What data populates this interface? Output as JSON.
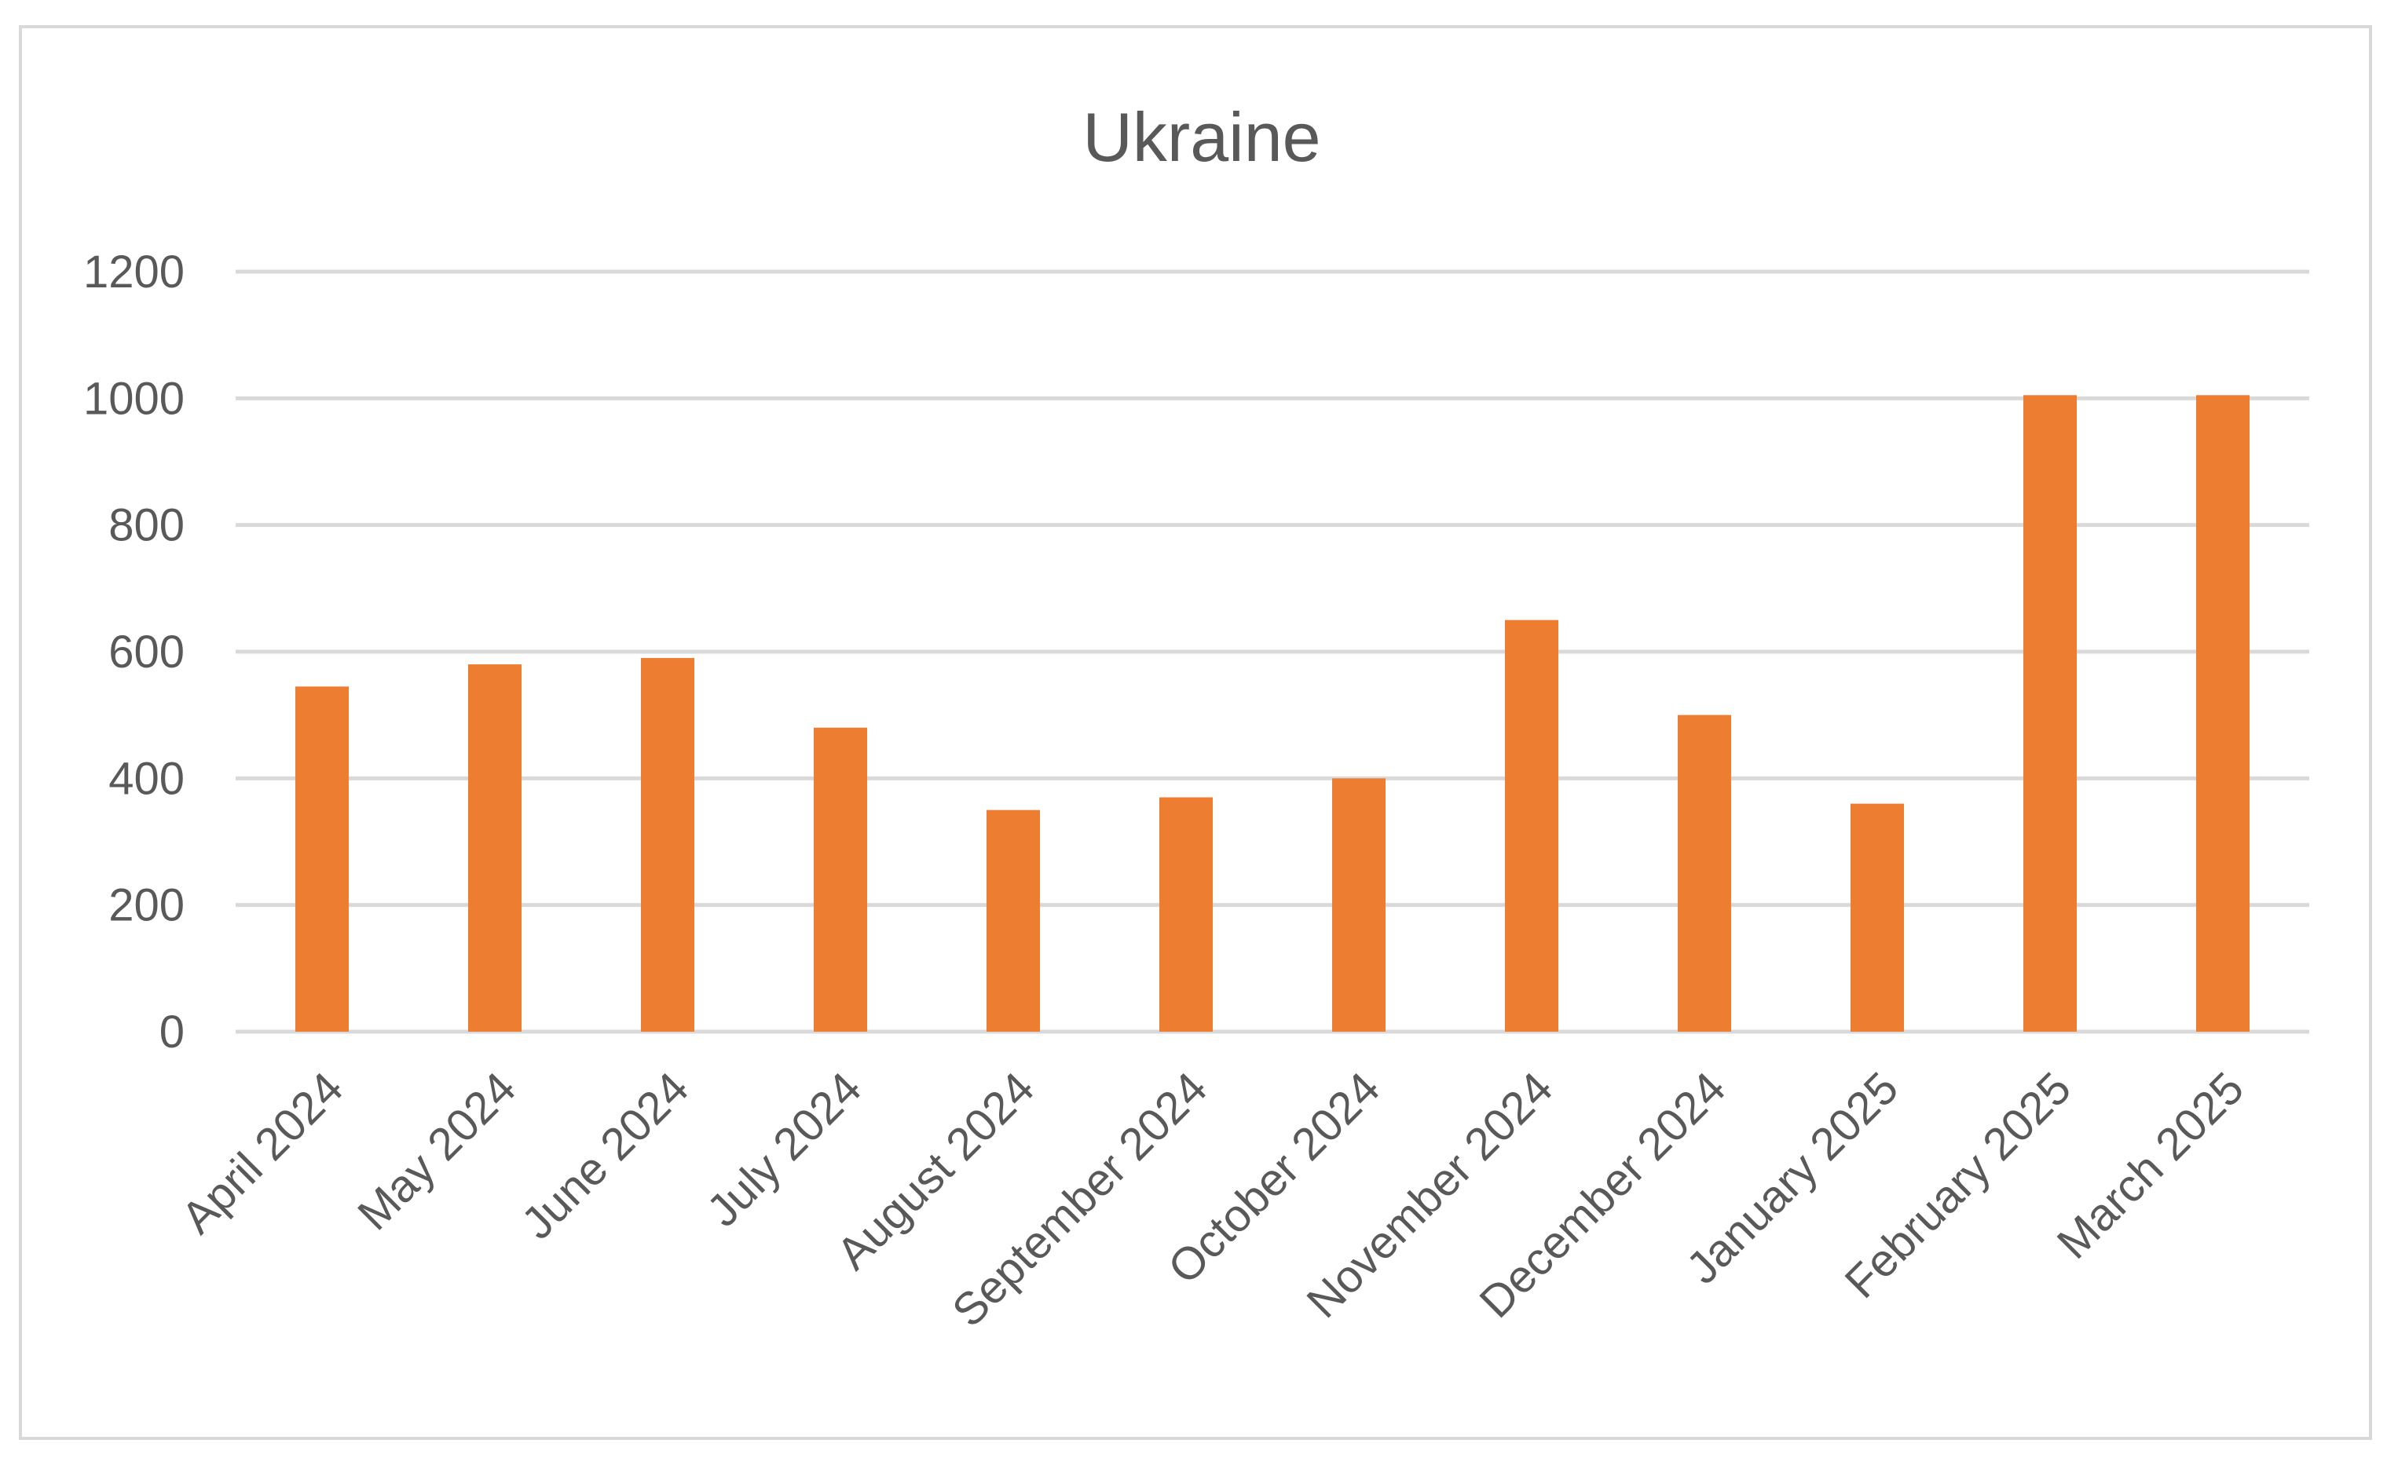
{
  "chart_data": {
    "type": "bar",
    "title": "Ukraine",
    "xlabel": "",
    "ylabel": "",
    "categories": [
      "April 2024",
      "May 2024",
      "June 2024",
      "July 2024",
      "August 2024",
      "September 2024",
      "October 2024",
      "November 2024",
      "December 2024",
      "January 2025",
      "February 2025",
      "March 2025"
    ],
    "values": [
      545,
      580,
      590,
      480,
      350,
      370,
      400,
      650,
      500,
      360,
      1005,
      1005
    ],
    "ylim": [
      0,
      1200
    ],
    "yticks": [
      "0",
      "200",
      "400",
      "600",
      "800",
      "1000",
      "1200"
    ],
    "grid": true,
    "legend": "none",
    "bar_color": "#ed7d31",
    "grid_color": "#d9d9d9"
  }
}
